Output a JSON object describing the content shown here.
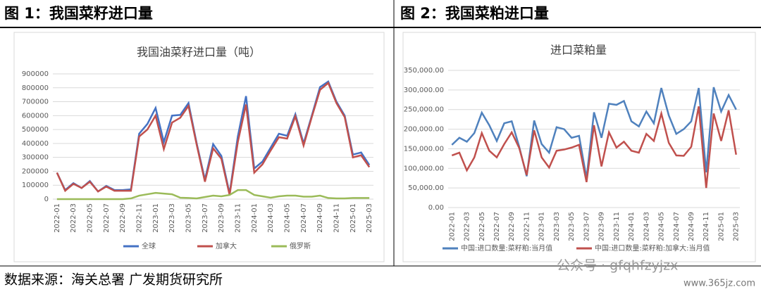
{
  "figure_titles": [
    "图 1：我国菜籽进口量",
    "图 2：我国菜粕进口量"
  ],
  "source": "数据来源：海关总署 广发期货研究所",
  "watermark": [
    "公众号 · gfqhfzyjzx",
    "www.365jz.com"
  ],
  "chart_data": [
    {
      "type": "line",
      "title": "我国油菜籽进口量（吨）",
      "categories": [
        "2022-01",
        null,
        "2022-03",
        null,
        "2022-05",
        null,
        "2022-07",
        null,
        "2022-09",
        null,
        "2022-11",
        null,
        "2023-01",
        null,
        "2023-03",
        null,
        "2023-05",
        null,
        "2023-07",
        null,
        "2023-09",
        null,
        "2023-11",
        null,
        "2024-01",
        null,
        "2024-03",
        null,
        "2024-05",
        null,
        "2024-07",
        null,
        "2024-09",
        null,
        "2024-11",
        null,
        "2025-01",
        null,
        "2025-03"
      ],
      "series": [
        {
          "name": "全球",
          "color": "#4472c4",
          "values": [
            190000,
            65000,
            115000,
            80000,
            130000,
            55000,
            95000,
            65000,
            65000,
            70000,
            470000,
            540000,
            655000,
            410000,
            600000,
            605000,
            690000,
            400000,
            140000,
            395000,
            310000,
            40000,
            450000,
            740000,
            220000,
            270000,
            370000,
            470000,
            455000,
            610000,
            400000,
            600000,
            805000,
            845000,
            700000,
            600000,
            320000,
            335000,
            245000
          ]
        },
        {
          "name": "加拿大",
          "color": "#c0504d",
          "values": [
            190000,
            60000,
            110000,
            80000,
            125000,
            55000,
            90000,
            60000,
            60000,
            60000,
            450000,
            500000,
            600000,
            360000,
            550000,
            585000,
            670000,
            390000,
            125000,
            365000,
            290000,
            30000,
            410000,
            680000,
            190000,
            250000,
            350000,
            445000,
            435000,
            595000,
            385000,
            590000,
            785000,
            835000,
            690000,
            590000,
            300000,
            315000,
            230000
          ]
        },
        {
          "name": "俄罗斯",
          "color": "#9bbb59",
          "values": [
            0,
            0,
            0,
            0,
            0,
            0,
            0,
            0,
            0,
            5000,
            25000,
            35000,
            45000,
            40000,
            35000,
            10000,
            8000,
            5000,
            15000,
            25000,
            20000,
            30000,
            65000,
            65000,
            30000,
            20000,
            10000,
            20000,
            25000,
            25000,
            18000,
            18000,
            25000,
            8000,
            5000,
            5000,
            8000,
            8000,
            8000
          ]
        }
      ],
      "ylim": [
        0,
        900000
      ],
      "yticks": [
        0,
        100000,
        200000,
        300000,
        400000,
        500000,
        600000,
        700000,
        800000,
        900000
      ],
      "grid": true,
      "legend": "bottom"
    },
    {
      "type": "line",
      "title": "进口菜粕量",
      "categories": [
        "2022-01",
        null,
        "2022-03",
        null,
        "2022-05",
        null,
        "2022-07",
        null,
        "2022-09",
        null,
        "2022-11",
        null,
        "2023-01",
        null,
        "2023-03",
        null,
        "2023-05",
        null,
        "2023-07",
        null,
        "2023-09",
        null,
        "2023-11",
        null,
        "2024-01",
        null,
        "2024-03",
        null,
        "2024-05",
        null,
        "2024-07",
        null,
        "2024-09",
        null,
        "2024-11",
        null,
        "2025-01",
        null,
        "2025-03"
      ],
      "series": [
        {
          "name": "中国:进口数量:菜籽粕:当月值",
          "color": "#4f81bd",
          "values": [
            160000,
            178000,
            168000,
            190000,
            242000,
            210000,
            170000,
            215000,
            220000,
            155000,
            80000,
            222000,
            162000,
            140000,
            205000,
            200000,
            178000,
            183000,
            75000,
            243000,
            178000,
            265000,
            262000,
            272000,
            220000,
            207000,
            245000,
            215000,
            305000,
            235000,
            188000,
            200000,
            220000,
            305000,
            90000,
            307000,
            245000,
            287000,
            250000
          ]
        },
        {
          "name": "中国:进口数量:菜籽粕:加拿大:当月值",
          "color": "#c0504d",
          "values": [
            133000,
            140000,
            95000,
            128000,
            190000,
            145000,
            128000,
            162000,
            192000,
            152000,
            83000,
            197000,
            128000,
            102000,
            145000,
            148000,
            153000,
            160000,
            65000,
            210000,
            105000,
            192000,
            153000,
            168000,
            145000,
            140000,
            188000,
            170000,
            240000,
            165000,
            133000,
            132000,
            155000,
            258000,
            50000,
            240000,
            170000,
            248000,
            135000
          ]
        }
      ],
      "ylim": [
        0,
        350000
      ],
      "yticks": [
        {
          "value": 0,
          "label": "0.00"
        },
        {
          "value": 50000,
          "label": "50,000.00"
        },
        {
          "value": 100000,
          "label": "100,000.00"
        },
        {
          "value": 150000,
          "label": "150,000.00"
        },
        {
          "value": 200000,
          "label": "200,000.00"
        },
        {
          "value": 250000,
          "label": "250,000.00"
        },
        {
          "value": 300000,
          "label": "300,000.00"
        },
        {
          "value": 350000,
          "label": "350,000.00"
        }
      ],
      "grid": true,
      "legend": "bottom"
    }
  ]
}
